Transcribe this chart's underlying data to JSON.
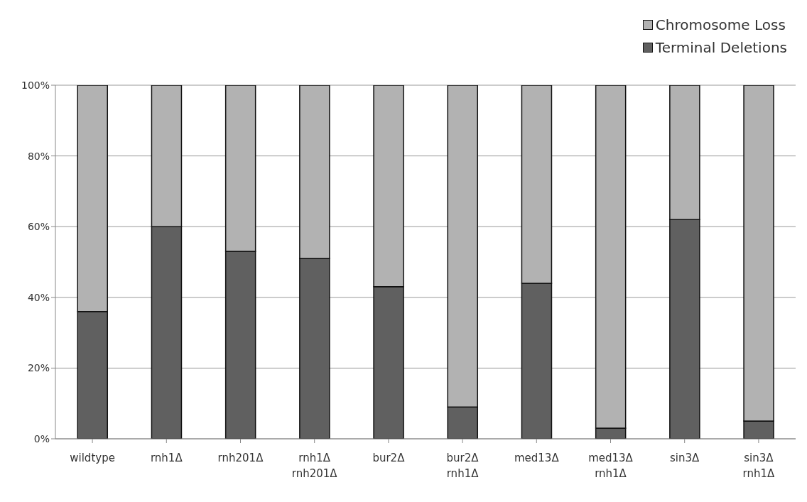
{
  "chart_data": {
    "type": "bar",
    "stacked": true,
    "categories": [
      "wildtype",
      "rnh1Δ",
      "rnh201Δ",
      "rnh1Δ rnh201Δ",
      "bur2Δ",
      "bur2Δ rnh1Δ",
      "med13Δ",
      "med13Δ rnh1Δ",
      "sin3Δ",
      "sin3Δ rnh1Δ"
    ],
    "series": [
      {
        "name": "Terminal Deletions",
        "color": "#606060",
        "values": [
          36,
          60,
          53,
          51,
          43,
          9,
          44,
          3,
          62,
          5
        ]
      },
      {
        "name": "Chromosome Loss",
        "color": "#b2b2b2",
        "values": [
          64,
          40,
          47,
          49,
          57,
          91,
          56,
          97,
          38,
          95
        ]
      }
    ],
    "ylim": [
      0,
      100
    ],
    "yticks": [
      {
        "value": 0,
        "label": "0%"
      },
      {
        "value": 20,
        "label": "20%"
      },
      {
        "value": 40,
        "label": "40%"
      },
      {
        "value": 60,
        "label": "60%"
      },
      {
        "value": 80,
        "label": "80%"
      },
      {
        "value": 100,
        "label": "100%"
      }
    ],
    "grid": "y",
    "legend": "top right"
  }
}
